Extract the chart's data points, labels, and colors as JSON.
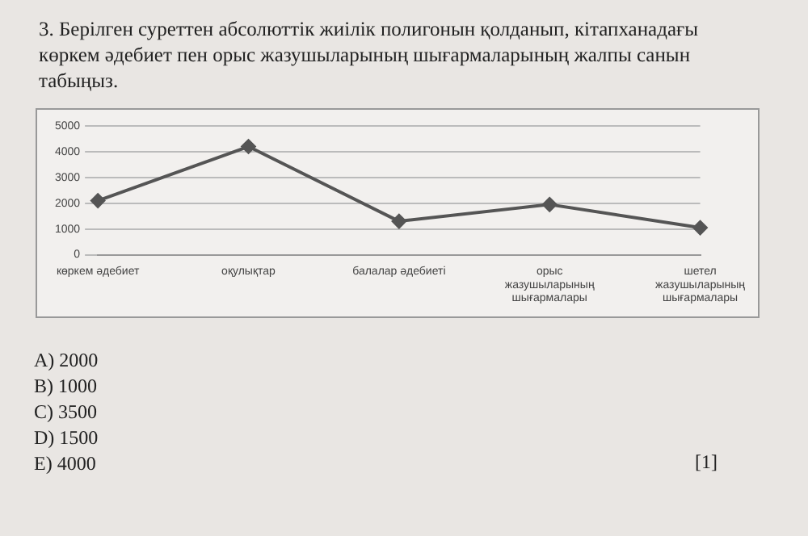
{
  "chart_data": {
    "type": "line",
    "title": "3. Берілген суреттен абсолюттік жиілік полигонын қолданып, кітапханадағы көркем әдебиет пен  орыс жазушыларының шығармаларының  жалпы санын табыңыз.",
    "categories": [
      "көркем әдебиет",
      "оқулықтар",
      "балалар әдебиеті",
      "орыс жазушыларының шығармалары",
      "шетел жазушыларының шығармалары"
    ],
    "values": [
      2100,
      4200,
      1300,
      1950,
      1050
    ],
    "color": "#555555",
    "ylim": [
      0,
      5000
    ],
    "yticks": [
      0,
      1000,
      2000,
      3000,
      4000,
      5000
    ],
    "grid": "y",
    "legend": false,
    "marker": "diamond",
    "line_style": "solid",
    "annotations": [
      "A) 2000",
      "B) 1000",
      "C) 3500",
      "D) 1500",
      "E)  4000",
      "[1]"
    ]
  }
}
